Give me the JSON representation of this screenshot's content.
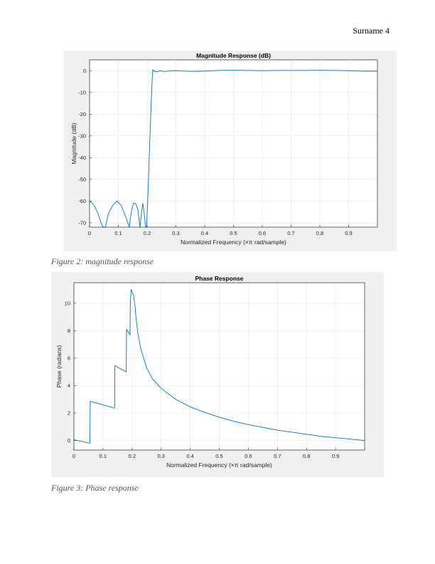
{
  "header": {
    "text": "Surname 4"
  },
  "captions": [
    "Figure 2: magnitude response",
    "Figure 3: Phase response"
  ],
  "colors": {
    "line": "#0072bd",
    "figure_bg": "#f0f0f0",
    "caption": "#44546a"
  },
  "chart_data": [
    {
      "type": "line",
      "title": "Magnitude Response (dB)",
      "xlabel": "Normalized Frequency (×π rad/sample)",
      "ylabel": "Magnitude (dB)",
      "xlim": [
        0,
        1
      ],
      "ylim": [
        -72,
        5
      ],
      "xticks": [
        0,
        0.1,
        0.2,
        0.3,
        0.4,
        0.5,
        0.6,
        0.7,
        0.8,
        0.9
      ],
      "xtick_labels": [
        "0",
        "0.1",
        "0.2",
        "0.3",
        "0.4",
        "0.5",
        "0.6",
        "0.7",
        "0.8",
        "0.9"
      ],
      "yticks": [
        0,
        -10,
        -20,
        -30,
        -40,
        -50,
        -60,
        -70
      ],
      "ytick_labels": [
        "0",
        "-10",
        "-20",
        "-30",
        "-40",
        "-50",
        "-60",
        "-70"
      ],
      "grid": true,
      "x": [
        0,
        0.01,
        0.02,
        0.03,
        0.04,
        0.047,
        0.055,
        0.065,
        0.08,
        0.095,
        0.11,
        0.125,
        0.138,
        0.145,
        0.152,
        0.16,
        0.168,
        0.175,
        0.18,
        0.185,
        0.19,
        0.195,
        0.198,
        0.202,
        0.206,
        0.21,
        0.214,
        0.218,
        0.22,
        0.223,
        0.228,
        0.235,
        0.245,
        0.26,
        0.28,
        0.3,
        0.35,
        0.4,
        0.45,
        0.5,
        0.55,
        0.6,
        0.65,
        0.7,
        0.75,
        0.8,
        0.85,
        0.9,
        0.95,
        1.0
      ],
      "y": [
        -60,
        -61,
        -63,
        -66,
        -70,
        -72,
        -72,
        -66,
        -62,
        -60,
        -62,
        -67,
        -72,
        -65,
        -61,
        -61,
        -64,
        -72,
        -66,
        -61,
        -66,
        -72,
        -72,
        -60,
        -45,
        -30,
        -15,
        -3,
        0.5,
        -0.3,
        -0.2,
        -0.5,
        0.0,
        -0.4,
        -0.1,
        0.0,
        -0.3,
        -0.2,
        0.1,
        0.2,
        0.1,
        0.0,
        0.1,
        0.1,
        0.1,
        0.2,
        0.1,
        0.0,
        -0.2,
        -0.2
      ]
    },
    {
      "type": "line",
      "title": "Phase Response",
      "xlabel": "Normalized Frequency (×π rad/sample)",
      "ylabel": "Phase (radians)",
      "xlim": [
        0,
        1
      ],
      "ylim": [
        -0.7,
        11.5
      ],
      "xticks": [
        0,
        0.1,
        0.2,
        0.3,
        0.4,
        0.5,
        0.6,
        0.7,
        0.8,
        0.9
      ],
      "xtick_labels": [
        "0",
        "0.1",
        "0.2",
        "0.3",
        "0.4",
        "0.5",
        "0.6",
        "0.7",
        "0.8",
        "0.9"
      ],
      "yticks": [
        0,
        2,
        4,
        6,
        8,
        10
      ],
      "ytick_labels": [
        "0",
        "2",
        "4",
        "6",
        "8",
        "10"
      ],
      "grid": true,
      "x": [
        0,
        0.055,
        0.056,
        0.1,
        0.14,
        0.141,
        0.18,
        0.181,
        0.193,
        0.194,
        0.197,
        0.205,
        0.21,
        0.215,
        0.22,
        0.23,
        0.25,
        0.27,
        0.3,
        0.35,
        0.4,
        0.45,
        0.5,
        0.55,
        0.6,
        0.65,
        0.7,
        0.75,
        0.8,
        0.85,
        0.9,
        0.95,
        1.0
      ],
      "y": [
        0.05,
        -0.2,
        2.85,
        2.6,
        2.35,
        5.45,
        5.0,
        8.1,
        7.7,
        10.0,
        11.0,
        10.6,
        9.8,
        8.7,
        7.8,
        6.7,
        5.3,
        4.5,
        3.8,
        3.0,
        2.45,
        2.05,
        1.7,
        1.4,
        1.15,
        0.95,
        0.75,
        0.6,
        0.45,
        0.3,
        0.2,
        0.1,
        0.0
      ]
    }
  ]
}
